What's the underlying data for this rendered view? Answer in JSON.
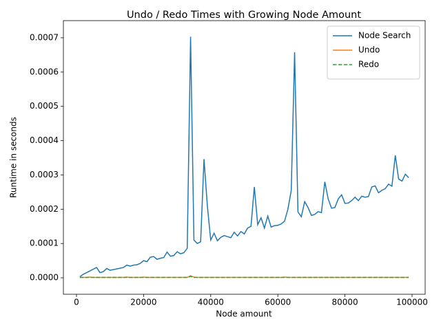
{
  "chart_data": {
    "type": "line",
    "title": "Undo / Redo Times with Growing Node Amount",
    "x_label": "Node amount",
    "y_label": "Runtime in seconds",
    "x": [
      1000,
      2000,
      3000,
      4000,
      5000,
      6000,
      7000,
      8000,
      9000,
      10000,
      11000,
      12000,
      13000,
      14000,
      15000,
      16000,
      17000,
      18000,
      19000,
      20000,
      21000,
      22000,
      23000,
      24000,
      25000,
      26000,
      27000,
      28000,
      29000,
      30000,
      31000,
      32000,
      33000,
      34000,
      35000,
      36000,
      37000,
      38000,
      39000,
      40000,
      41000,
      42000,
      43000,
      44000,
      45000,
      46000,
      47000,
      48000,
      49000,
      50000,
      51000,
      52000,
      53000,
      54000,
      55000,
      56000,
      57000,
      58000,
      59000,
      60000,
      61000,
      62000,
      63000,
      64000,
      65000,
      66000,
      67000,
      68000,
      69000,
      70000,
      71000,
      72000,
      73000,
      74000,
      75000,
      76000,
      77000,
      78000,
      79000,
      80000,
      81000,
      82000,
      83000,
      84000,
      85000,
      86000,
      87000,
      88000,
      89000,
      90000,
      91000,
      92000,
      93000,
      94000,
      95000,
      96000,
      97000,
      98000,
      99000
    ],
    "series": [
      {
        "name": "Node Search",
        "color": "#1f77b4",
        "dash": false,
        "values": [
          3e-06,
          1e-05,
          1.5e-05,
          2e-05,
          2.5e-05,
          3e-05,
          1.5e-05,
          1.8e-05,
          2.7e-05,
          2.2e-05,
          2.4e-05,
          2.6e-05,
          2.8e-05,
          3e-05,
          3.7e-05,
          3.4e-05,
          3.7e-05,
          3.8e-05,
          4.2e-05,
          5e-05,
          4.7e-05,
          6e-05,
          6.2e-05,
          5.4e-05,
          5.7e-05,
          5.9e-05,
          7.5e-05,
          6.3e-05,
          6.5e-05,
          7.6e-05,
          7e-05,
          7.3e-05,
          8.6e-05,
          0.000703,
          0.00011,
          0.0001,
          0.000105,
          0.000346,
          0.00021,
          0.00011,
          0.00013,
          0.000108,
          0.000118,
          0.000123,
          0.00012,
          0.000117,
          0.000133,
          0.000122,
          0.000135,
          0.000128,
          0.000145,
          0.00015,
          0.000265,
          0.000155,
          0.000175,
          0.000145,
          0.00018,
          0.000148,
          0.000152,
          0.000153,
          0.000157,
          0.000165,
          0.0002,
          0.000255,
          0.000658,
          0.000192,
          0.000178,
          0.000222,
          0.000205,
          0.000182,
          0.000185,
          0.000193,
          0.00019,
          0.00028,
          0.00023,
          0.000203,
          0.000205,
          0.00023,
          0.000242,
          0.000217,
          0.000218,
          0.000225,
          0.000235,
          0.000225,
          0.000238,
          0.000235,
          0.000237,
          0.000265,
          0.000268,
          0.000248,
          0.000255,
          0.00026,
          0.000273,
          0.000267,
          0.000357,
          0.000288,
          0.000282,
          0.000302,
          0.000292
        ]
      },
      {
        "name": "Undo",
        "color": "#ff7f0e",
        "dash": false,
        "values": [
          1e-06,
          1e-06,
          1e-06,
          2e-06,
          1e-06,
          1e-06,
          1e-06,
          1e-06,
          1e-06,
          1e-06,
          1e-06,
          1e-06,
          1e-06,
          1e-06,
          2e-06,
          1e-06,
          1e-06,
          1e-06,
          1e-06,
          2e-06,
          1e-06,
          1e-06,
          1e-06,
          1e-06,
          1e-06,
          1e-06,
          1e-06,
          1e-06,
          1e-06,
          1e-06,
          1e-06,
          1e-06,
          1e-06,
          6e-06,
          2e-06,
          1e-06,
          1e-06,
          1e-06,
          1e-06,
          1e-06,
          1e-06,
          1e-06,
          1e-06,
          1e-06,
          1e-06,
          1e-06,
          1e-06,
          1e-06,
          1e-06,
          1e-06,
          1e-06,
          1e-06,
          1e-06,
          1e-06,
          1e-06,
          1e-06,
          1e-06,
          1e-06,
          1e-06,
          1e-06,
          1e-06,
          2e-06,
          1e-06,
          1e-06,
          1e-06,
          1e-06,
          1e-06,
          1e-06,
          1e-06,
          1e-06,
          1e-06,
          1e-06,
          1e-06,
          1e-06,
          1e-06,
          1e-06,
          1e-06,
          1e-06,
          1e-06,
          1e-06,
          1e-06,
          1e-06,
          1e-06,
          1e-06,
          1e-06,
          1e-06,
          1e-06,
          1e-06,
          1e-06,
          1e-06,
          1e-06,
          1e-06,
          1e-06,
          1e-06,
          1e-06,
          1e-06,
          1e-06,
          1e-06,
          1e-06
        ]
      },
      {
        "name": "Redo",
        "color": "#2ca02c",
        "dash": true,
        "values": [
          1e-06,
          1e-06,
          1e-06,
          1e-06,
          1e-06,
          1e-06,
          1e-06,
          1e-06,
          1e-06,
          1e-06,
          1e-06,
          1e-06,
          1e-06,
          1e-06,
          1e-06,
          1e-06,
          1e-06,
          1e-06,
          1e-06,
          1e-06,
          1e-06,
          1e-06,
          1e-06,
          1e-06,
          1e-06,
          1e-06,
          1e-06,
          1e-06,
          1e-06,
          1e-06,
          1e-06,
          1e-06,
          1e-06,
          4e-06,
          1e-06,
          1e-06,
          1e-06,
          1e-06,
          1e-06,
          1e-06,
          1e-06,
          1e-06,
          1e-06,
          1e-06,
          1e-06,
          1e-06,
          1e-06,
          1e-06,
          1e-06,
          1e-06,
          1e-06,
          1e-06,
          1e-06,
          1e-06,
          1e-06,
          1e-06,
          1e-06,
          1e-06,
          1e-06,
          1e-06,
          1e-06,
          1e-06,
          1e-06,
          1e-06,
          1e-06,
          1e-06,
          1e-06,
          1e-06,
          1e-06,
          1e-06,
          1e-06,
          1e-06,
          1e-06,
          1e-06,
          1e-06,
          1e-06,
          1e-06,
          1e-06,
          1e-06,
          1e-06,
          1e-06,
          1e-06,
          1e-06,
          1e-06,
          1e-06,
          1e-06,
          1e-06,
          1e-06,
          1e-06,
          1e-06,
          1e-06,
          1e-06,
          1e-06,
          1e-06,
          1e-06,
          1e-06,
          1e-06,
          1e-06,
          1e-06
        ]
      }
    ],
    "xlim": [
      -3900,
      103900
    ],
    "ylim": [
      -4.8e-05,
      0.00075
    ],
    "xticks": [
      0,
      20000,
      40000,
      60000,
      80000,
      100000
    ],
    "yticks": [
      {
        "value": 0,
        "label": "0.0000"
      },
      {
        "value": 0.0001,
        "label": "0.0001"
      },
      {
        "value": 0.0002,
        "label": "0.0002"
      },
      {
        "value": 0.0003,
        "label": "0.0003"
      },
      {
        "value": 0.0004,
        "label": "0.0004"
      },
      {
        "value": 0.0005,
        "label": "0.0005"
      },
      {
        "value": 0.0006,
        "label": "0.0006"
      },
      {
        "value": 0.0007,
        "label": "0.0007"
      }
    ],
    "legend": "upper right",
    "grid": false
  }
}
